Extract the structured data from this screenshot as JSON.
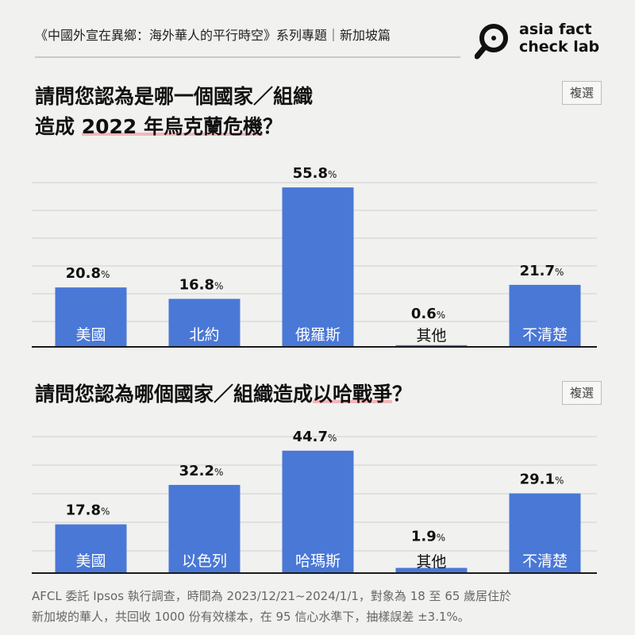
{
  "header": {
    "series_title": "《中國外宣在異鄉：海外華人的平行時空》系列專題｜新加坡篇",
    "logo_line1": "asia fact",
    "logo_line2": "check lab"
  },
  "colors": {
    "bar": "#4a78d6",
    "axis": "#1a1a1a",
    "grid": "#cfcfcf",
    "highlight": "#f2b7bb"
  },
  "chart_data": [
    {
      "type": "bar",
      "title_parts": [
        "請問您認為是哪一個國家／組織",
        "造成 ",
        "2022 年烏克蘭危機",
        "？"
      ],
      "tag": "複選",
      "categories": [
        "美國",
        "北約",
        "俄羅斯",
        "其他",
        "不清楚"
      ],
      "values": [
        20.8,
        16.8,
        55.8,
        0.6,
        21.7
      ],
      "value_labels": [
        "20.8",
        "16.8",
        "55.8",
        "0.6",
        "21.7"
      ],
      "unit": "%",
      "ylim": [
        0,
        60
      ],
      "grid": true
    },
    {
      "type": "bar",
      "title_parts": [
        "請問您認為哪個國家／組織造成",
        "以哈戰爭",
        "？"
      ],
      "tag": "複選",
      "categories": [
        "美國",
        "以色列",
        "哈瑪斯",
        "其他",
        "不清楚"
      ],
      "values": [
        17.8,
        32.2,
        44.7,
        1.9,
        29.1
      ],
      "value_labels": [
        "17.8",
        "32.2",
        "44.7",
        "1.9",
        "29.1"
      ],
      "unit": "%",
      "ylim": [
        0,
        60
      ],
      "grid": true
    }
  ],
  "footnote": {
    "line1": "AFCL 委託 Ipsos 執行調查，時間為 2023/12/21~2024/1/1，對象為 18 至 65 歲居住於",
    "line2": "新加坡的華人，共回收 1000 份有效樣本，在 95 信心水準下，抽樣誤差 ±3.1%。"
  }
}
